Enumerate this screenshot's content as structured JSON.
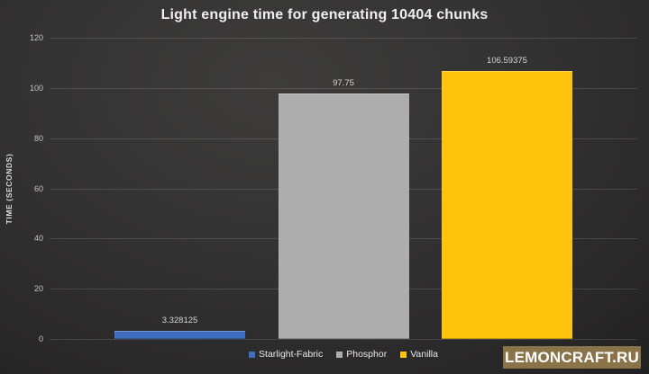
{
  "chart_data": {
    "type": "bar",
    "title": "Light engine time for generating 10404 chunks",
    "categories": [
      "Starlight-Fabric",
      "Phosphor",
      "Vanilla"
    ],
    "values": [
      3.328125,
      97.75,
      106.59375
    ],
    "data_labels": [
      "3.328125",
      "97.75",
      "106.59375"
    ],
    "colors": [
      "#3e6dbf",
      "#adadad",
      "#fdc30d"
    ],
    "xlabel": "",
    "ylabel": "TIME (SECONDS)",
    "ylim": [
      0,
      120
    ],
    "yticks": [
      0,
      20,
      40,
      60,
      80,
      100,
      120
    ],
    "grid": true,
    "legend_position": "bottom"
  },
  "legend": {
    "items": [
      {
        "label": "Starlight-Fabric",
        "color": "#3e6dbf"
      },
      {
        "label": "Phosphor",
        "color": "#adadad"
      },
      {
        "label": "Vanilla",
        "color": "#fdc30d"
      }
    ]
  },
  "watermark": {
    "text": "LEMONCRAFT.RU",
    "bg_color": "#8a7349",
    "text_color": "#ffffff"
  }
}
